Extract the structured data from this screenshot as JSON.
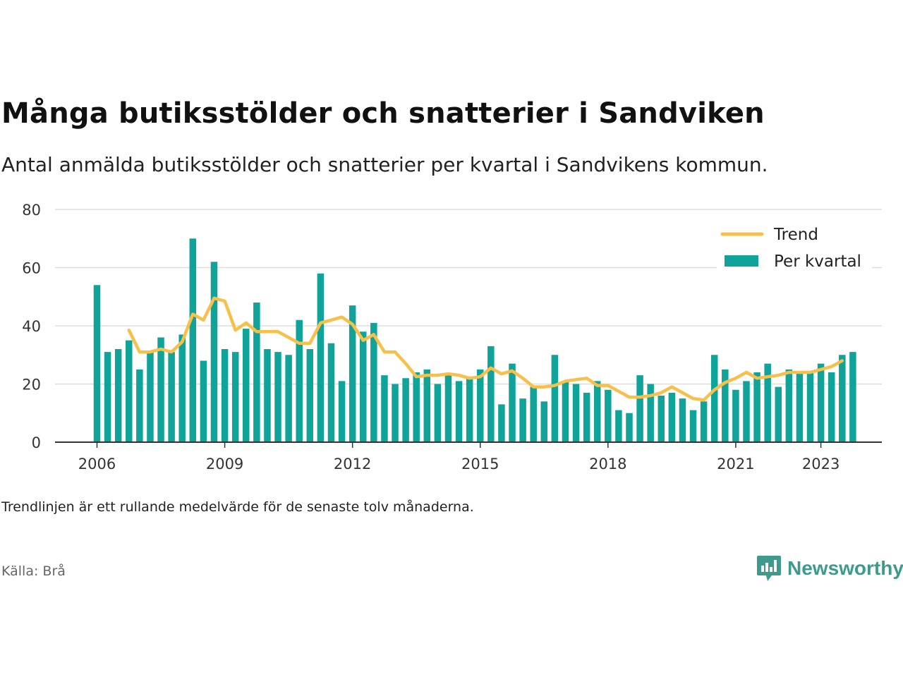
{
  "title": "Många butiksstölder och snatterier i Sandviken",
  "subtitle": "Antal anmälda butiksstölder och snatterier per kvartal i Sandvikens kommun.",
  "note": "Trendlinjen är ett rullande medelvärde för de senaste tolv månaderna.",
  "source": "Källa: Brå",
  "brand": {
    "name": "Newsworthy",
    "icon": "newsworthy-logo-icon",
    "color": "#3d9a8c"
  },
  "colors": {
    "bars": "#0fa39a",
    "trend": "#f7c04a",
    "grid": "#dddddd",
    "axis": "#333333"
  },
  "chart_data": {
    "type": "bar",
    "x_ticks": [
      "2006",
      "2009",
      "2012",
      "2015",
      "2018",
      "2021",
      "2023"
    ],
    "ylim": [
      0,
      80
    ],
    "y_ticks": [
      0,
      20,
      40,
      60,
      80
    ],
    "grid": true,
    "legend_placement": "top-right",
    "series": [
      {
        "name": "Per kvartal",
        "type": "bar",
        "values": [
          54,
          31,
          32,
          35,
          25,
          31,
          36,
          31,
          37,
          70,
          28,
          62,
          32,
          31,
          39,
          48,
          32,
          31,
          30,
          42,
          32,
          58,
          34,
          21,
          47,
          38,
          41,
          23,
          20,
          22,
          24,
          25,
          20,
          23,
          21,
          22,
          25,
          33,
          13,
          27,
          15,
          19,
          14,
          30,
          21,
          20,
          17,
          21,
          18,
          11,
          10,
          23,
          20,
          16,
          17,
          15,
          11,
          14,
          30,
          25,
          18,
          21,
          24,
          27,
          19,
          25,
          24,
          24,
          27,
          24,
          30,
          31
        ]
      },
      {
        "name": "Trend",
        "type": "line",
        "start_index": 3,
        "values": [
          38.5,
          31,
          31,
          32,
          31,
          34.5,
          44,
          42,
          49.5,
          48.5,
          38.5,
          41,
          38,
          38,
          38,
          36,
          34,
          34,
          41,
          42,
          43,
          40.5,
          35,
          37,
          31,
          31,
          27,
          22.5,
          23,
          23,
          23.5,
          23,
          22,
          22.5,
          25.5,
          23.5,
          24.5,
          22,
          19,
          19,
          19.5,
          21,
          21.5,
          22,
          19.5,
          19.5,
          17.5,
          15.5,
          15.5,
          16,
          17,
          19,
          17,
          15,
          14.5,
          18,
          20.5,
          22,
          24,
          22,
          22.5,
          23,
          24,
          24,
          24,
          25,
          26,
          28
        ]
      }
    ]
  }
}
